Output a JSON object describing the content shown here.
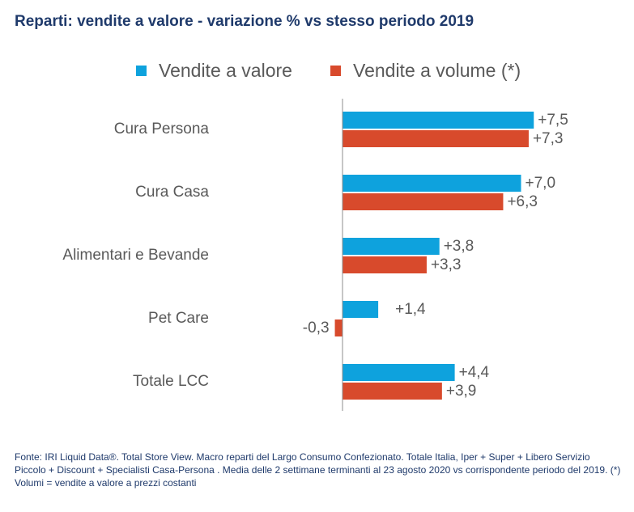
{
  "chart_data": {
    "type": "bar",
    "orientation": "horizontal",
    "title": "Reparti: vendite a valore - variazione % vs stesso periodo 2019",
    "categories": [
      "Cura Persona",
      "Cura Casa",
      "Alimentari e Bevande",
      "Pet Care",
      "Totale LCC"
    ],
    "series": [
      {
        "name": "Vendite a valore",
        "color": "#0ea2dd",
        "values": [
          7.5,
          7.0,
          3.8,
          1.4,
          4.4
        ],
        "labels": [
          "+7,5",
          "+7,0",
          "+3,8",
          "+1,4",
          "+4,4"
        ]
      },
      {
        "name": "Vendite a volume (*)",
        "color": "#d84a2c",
        "values": [
          7.3,
          6.3,
          3.3,
          -0.3,
          3.9
        ],
        "labels": [
          "+7,3",
          "+6,3",
          "+3,3",
          "-0,3",
          "+3,9"
        ]
      }
    ],
    "legend_position": "top",
    "grid": false
  },
  "footer": "Fonte: IRI Liquid Data®. Total Store View. Macro reparti del Largo Consumo Confezionato. Totale Italia, Iper + Super + Libero Servizio Piccolo + Discount + Specialisti Casa-Persona . Media delle 2 settimane terminanti al 23 agosto 2020 vs corrispondente periodo del 2019. (*) Volumi = vendite a valore a prezzi costanti"
}
